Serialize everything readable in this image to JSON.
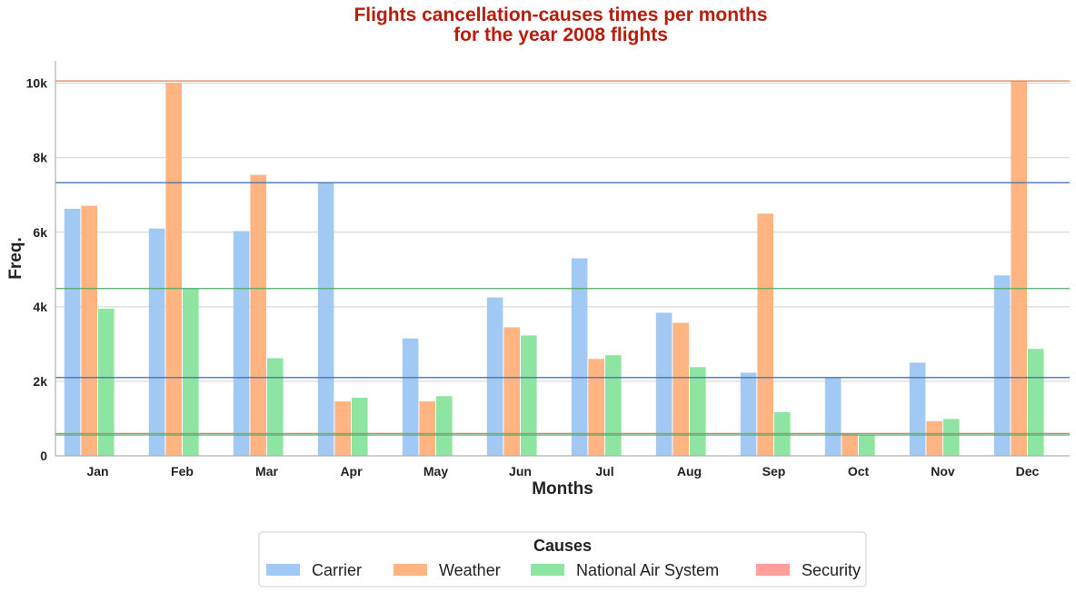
{
  "chart_data": {
    "type": "bar",
    "title": [
      "Flights cancellation-causes times per months",
      "for the year 2008 flights"
    ],
    "xlabel": "Months",
    "ylabel": "Freq.",
    "categories": [
      "Jan",
      "Feb",
      "Mar",
      "Apr",
      "May",
      "Jun",
      "Jul",
      "Aug",
      "Sep",
      "Oct",
      "Nov",
      "Dec"
    ],
    "ylim": [
      0,
      10600
    ],
    "yticks": [
      {
        "value": 0,
        "label": "0"
      },
      {
        "value": 2000,
        "label": "2k"
      },
      {
        "value": 4000,
        "label": "4k"
      },
      {
        "value": 6000,
        "label": "6k"
      },
      {
        "value": 8000,
        "label": "8k"
      },
      {
        "value": 10000,
        "label": "10k"
      }
    ],
    "series": [
      {
        "name": "Carrier",
        "color": "#a1c9f4",
        "values": [
          6630,
          6100,
          6030,
          7330,
          3150,
          4250,
          5300,
          3840,
          2230,
          2100,
          2500,
          4840
        ]
      },
      {
        "name": "Weather",
        "color": "#ffb482",
        "values": [
          6710,
          10010,
          7540,
          1460,
          1460,
          3450,
          2600,
          3570,
          6500,
          600,
          930,
          10060
        ]
      },
      {
        "name": "National Air System",
        "color": "#8de5a1",
        "values": [
          3950,
          4490,
          2620,
          1560,
          1600,
          3230,
          2700,
          2380,
          1170,
          560,
          990,
          2870
        ]
      },
      {
        "name": "Security",
        "color": "#ff9f9b",
        "values": [
          5,
          5,
          5,
          5,
          5,
          5,
          5,
          5,
          5,
          5,
          5,
          5
        ]
      }
    ],
    "reference_lines": [
      {
        "value": 10060,
        "color": "#dd8452"
      },
      {
        "value": 7330,
        "color": "#4c72b0"
      },
      {
        "value": 4490,
        "color": "#55a868"
      },
      {
        "value": 2100,
        "color": "#4c72b0"
      },
      {
        "value": 600,
        "color": "#dd8452"
      },
      {
        "value": 560,
        "color": "#55a868"
      }
    ],
    "grid": "horizontal",
    "legend": {
      "title": "Causes",
      "placement": "bottom-center"
    }
  }
}
